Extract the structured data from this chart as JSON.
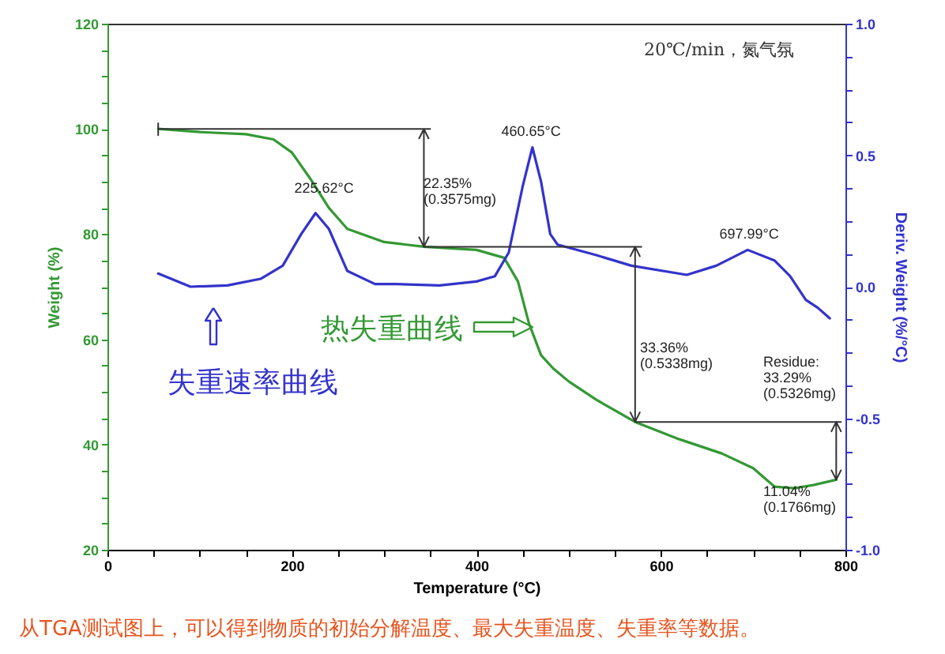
{
  "chart_data": {
    "type": "line",
    "xlabel": "Temperature (°C)",
    "ylabel": "Weight (%)",
    "y2label": "Deriv. Weight (%/°C)",
    "xlim": [
      0,
      800
    ],
    "ylim": [
      20,
      120
    ],
    "y2lim": [
      -1,
      1
    ],
    "xticks": [
      0,
      {
        "value": 50,
        "label": null
      },
      {
        "value": 100,
        "label": null
      },
      {
        "value": 150,
        "label": null
      },
      200,
      {
        "value": 250,
        "label": null
      },
      {
        "value": 300,
        "label": null
      },
      {
        "value": 350,
        "label": null
      },
      400,
      {
        "value": 450,
        "label": null
      },
      {
        "value": 500,
        "label": null
      },
      {
        "value": 550,
        "label": null
      },
      600,
      {
        "value": 650,
        "label": null
      },
      {
        "value": 700,
        "label": null
      },
      {
        "value": 750,
        "label": null
      },
      800
    ],
    "yticks": [
      20,
      {
        "value": 25,
        "label": null
      },
      {
        "value": 30,
        "label": null
      },
      {
        "value": 35,
        "label": null
      },
      40,
      {
        "value": 45,
        "label": null
      },
      {
        "value": 50,
        "label": null
      },
      {
        "value": 55,
        "label": null
      },
      60,
      {
        "value": 65,
        "label": null
      },
      {
        "value": 70,
        "label": null
      },
      {
        "value": 75,
        "label": null
      },
      80,
      {
        "value": 85,
        "label": null
      },
      {
        "value": 90,
        "label": null
      },
      {
        "value": 95,
        "label": null
      },
      100,
      {
        "value": 105,
        "label": null
      },
      {
        "value": 110,
        "label": null
      },
      {
        "value": 115,
        "label": null
      },
      120
    ],
    "y2ticks": [
      {
        "value": -1,
        "label": "-1.0"
      },
      {
        "value": -0.875,
        "label": null
      },
      {
        "value": -0.75,
        "label": null
      },
      {
        "value": -0.625,
        "label": null
      },
      {
        "value": -0.5,
        "label": "-0.5"
      },
      {
        "value": -0.375,
        "label": null
      },
      {
        "value": -0.25,
        "label": null
      },
      {
        "value": -0.125,
        "label": null
      },
      {
        "value": 0,
        "label": "0.0"
      },
      {
        "value": 0.125,
        "label": null
      },
      {
        "value": 0.25,
        "label": null
      },
      {
        "value": 0.375,
        "label": null
      },
      {
        "value": 0.5,
        "label": "0.5"
      },
      {
        "value": 0.625,
        "label": null
      },
      {
        "value": 0.75,
        "label": null
      },
      {
        "value": 0.875,
        "label": null
      },
      {
        "value": 1,
        "label": "1.0"
      }
    ],
    "grid": false,
    "line_style": "solid",
    "marker": "none",
    "series": [
      {
        "name": "热失重曲线",
        "color": "#339933",
        "x": [
          55,
          100,
          150,
          180,
          200,
          220,
          240,
          260,
          300,
          343,
          400,
          430,
          445,
          457,
          470,
          483,
          500,
          530,
          572,
          620,
          666,
          700,
          723,
          745,
          765,
          790
        ],
        "values": [
          100,
          99.4,
          99,
          98,
          95.5,
          90.5,
          85,
          81,
          78.5,
          77.6,
          77,
          75.5,
          71,
          63,
          57,
          54.5,
          52,
          48.5,
          44.3,
          41,
          38.3,
          35.5,
          32,
          31.7,
          32.3,
          33.3
        ]
      },
      {
        "name": "失重速率曲线",
        "color": "#3333cc",
        "axis": "y2",
        "x": [
          55,
          90,
          130,
          166,
          190,
          210,
          225.6,
          240,
          260,
          290,
          312,
          360,
          400,
          420,
          435,
          450,
          460.65,
          470,
          480,
          488,
          530,
          568,
          628,
          660,
          694,
          723,
          740,
          757,
          770,
          783
        ],
        "values": [
          0.05,
          0,
          0.005,
          0.03,
          0.08,
          0.2,
          0.28,
          0.22,
          0.06,
          0.01,
          0.01,
          0.005,
          0.02,
          0.04,
          0.13,
          0.38,
          0.53,
          0.4,
          0.2,
          0.16,
          0.12,
          0.08,
          0.045,
          0.08,
          0.14,
          0.1,
          0.04,
          -0.05,
          -0.08,
          -0.12
        ]
      }
    ],
    "annotations": [
      "20℃/min，氮气氛",
      "225.62°C",
      "460.65°C",
      "697.99°C",
      "22.35%\n(0.3575mg)",
      "33.36%\n(0.5338mg)",
      "Residue:\n33.29%\n(0.5326mg)",
      "11.04%\n(0.1766mg)",
      "从TGA测试图上，可以得到物质的初始分解温度、最大失重温度、失重率等数据。"
    ]
  }
}
